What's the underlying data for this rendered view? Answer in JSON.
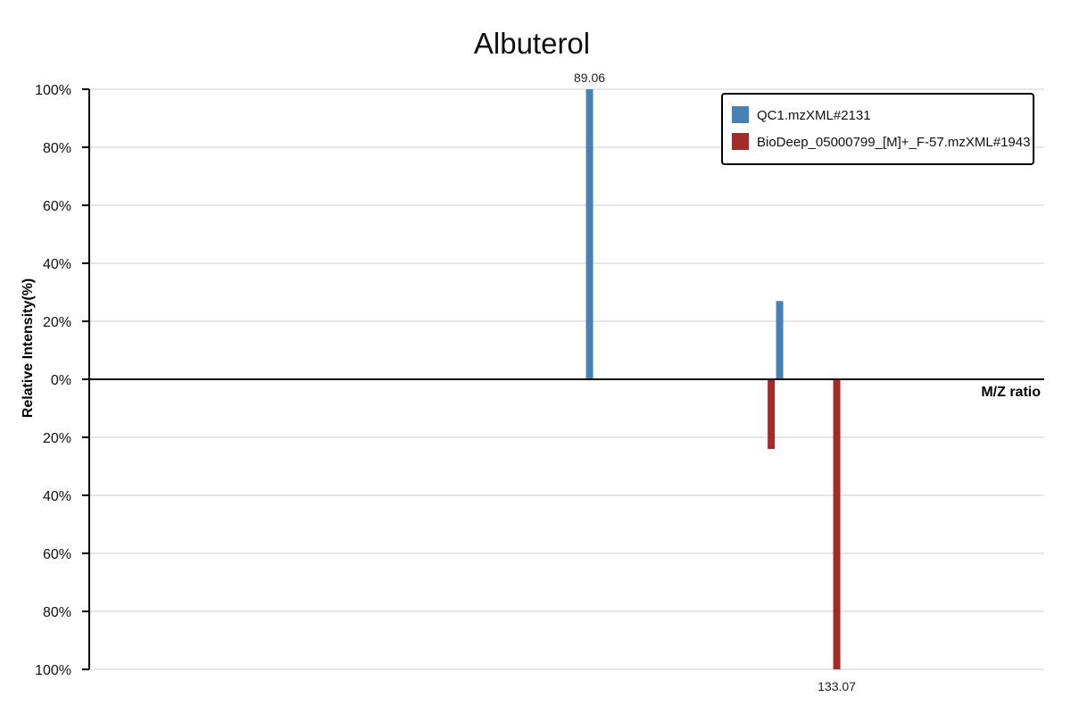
{
  "chart_data": {
    "type": "bar",
    "title": "Albuterol",
    "xlabel": "M/Z ratio",
    "ylabel": "Relative Intensity(%)",
    "yticks_top": [
      "100%",
      "80%",
      "60%",
      "40%",
      "20%",
      "0%"
    ],
    "yticks_bottom": [
      "20%",
      "40%",
      "60%",
      "80%",
      "100%"
    ],
    "ylim_top": [
      0,
      100
    ],
    "ylim_bottom": [
      0,
      100
    ],
    "xlim": [
      0,
      170
    ],
    "grid": true,
    "legend_position": "top-right",
    "series": [
      {
        "name": "QC1.mzXML#2131",
        "color": "#4682b4",
        "direction": "up",
        "peaks": [
          {
            "mz": 89.06,
            "intensity": 100,
            "label": "89.06"
          },
          {
            "mz": 122.9,
            "intensity": 27
          }
        ]
      },
      {
        "name": "BioDeep_05000799_[M]+_F-57.mzXML#1943",
        "color": "#a52a2a",
        "direction": "down",
        "peaks": [
          {
            "mz": 121.4,
            "intensity": 24
          },
          {
            "mz": 133.07,
            "intensity": 100,
            "label": "133.07"
          }
        ]
      }
    ]
  }
}
